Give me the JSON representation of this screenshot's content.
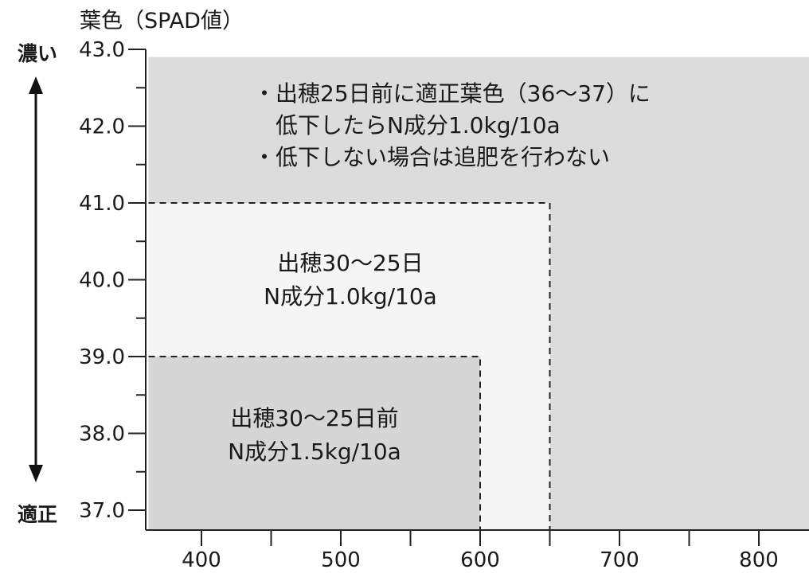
{
  "chart_data": {
    "type": "area",
    "title": "",
    "ylabel": "葉色（SPAD値）",
    "xlabel": "",
    "xlim": [
      362,
      1016
    ],
    "ylim": [
      36.7,
      43.0
    ],
    "x_ticks": [
      400,
      500,
      600,
      700,
      800
    ],
    "y_ticks": [
      "43.0",
      "42.0",
      "41.0",
      "40.0",
      "39.0",
      "38.0",
      "37.0"
    ],
    "y_tick_values": [
      43,
      42,
      41,
      40,
      39,
      38,
      37
    ],
    "direction": {
      "top": "濃い",
      "bottom": "適正"
    },
    "grid": false,
    "regions": [
      {
        "x_from": 362,
        "x_to": 1016,
        "y_from": 36.7,
        "y_to": 42.9,
        "fill": "#dcdcdc",
        "lines": [
          "・出穂25日前に適正葉色（36〜37）に",
          "　低下したらN成分1.0kg/10a",
          "・低下しない場合は追肥を行わない"
        ]
      },
      {
        "x_from": 362,
        "x_to": 650,
        "y_from": 36.7,
        "y_to": 41.0,
        "fill": "#f5f5f5",
        "lines": [
          "出穂30〜25日",
          "N成分1.0kg/10a"
        ]
      },
      {
        "x_from": 362,
        "x_to": 600,
        "y_from": 36.7,
        "y_to": 39.0,
        "fill": "#d6d6d6",
        "lines": [
          "出穂30〜25日前",
          "N成分1.5kg/10a"
        ]
      }
    ]
  }
}
